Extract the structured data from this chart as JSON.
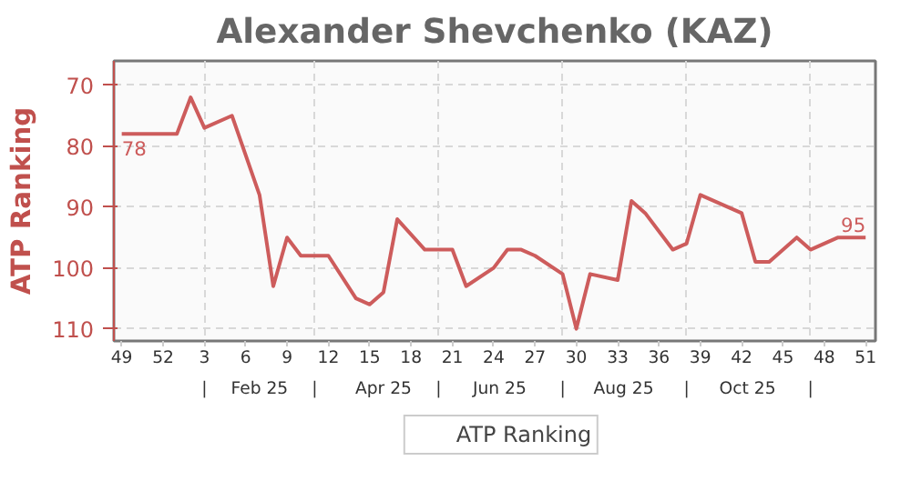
{
  "chart_data": {
    "type": "line",
    "title": "Alexander Shevchenko (KAZ)",
    "ylabel": "ATP Ranking",
    "x": [
      "2024-12-02",
      "2024-12-30",
      "2025-01-06",
      "2025-01-13",
      "2025-01-27",
      "2025-02-10",
      "2025-02-17",
      "2025-02-24",
      "2025-03-03",
      "2025-03-17",
      "2025-03-31",
      "2025-04-07",
      "2025-04-14",
      "2025-04-21",
      "2025-05-05",
      "2025-05-19",
      "2025-05-26",
      "2025-06-09",
      "2025-06-16",
      "2025-06-23",
      "2025-06-30",
      "2025-07-14",
      "2025-07-21",
      "2025-07-28",
      "2025-08-11",
      "2025-08-18",
      "2025-08-25",
      "2025-09-08",
      "2025-09-15",
      "2025-09-22",
      "2025-10-13",
      "2025-10-20",
      "2025-10-27",
      "2025-11-10",
      "2025-11-17",
      "2025-12-01",
      "2025-12-15"
    ],
    "series": [
      {
        "name": "ATP Ranking",
        "color": "#cd5c5c",
        "values": [
          78,
          78,
          72,
          77,
          75,
          88,
          103,
          95,
          98,
          98,
          105,
          106,
          104,
          92,
          97,
          97,
          103,
          100,
          97,
          97,
          98,
          101,
          110,
          101,
          102,
          89,
          91,
          97,
          96,
          88,
          91,
          99,
          99,
          95,
          97,
          95,
          95
        ],
        "value_labels": [
          "78",
          null,
          null,
          null,
          null,
          null,
          null,
          null,
          null,
          null,
          null,
          null,
          null,
          null,
          null,
          null,
          null,
          null,
          null,
          null,
          null,
          null,
          null,
          null,
          null,
          null,
          null,
          null,
          null,
          null,
          null,
          null,
          null,
          null,
          null,
          null,
          "95"
        ]
      }
    ],
    "xlim": [
      "2024-11-28",
      "2025-12-20"
    ],
    "xticks": [
      {
        "value": "2024-12-02",
        "label": "49"
      },
      {
        "value": "2024-12-23",
        "label": "52"
      },
      {
        "value": "2025-01-13",
        "label": "3"
      },
      {
        "value": "2025-02-03",
        "label": "6"
      },
      {
        "value": "2025-02-24",
        "label": "9"
      },
      {
        "value": "2025-03-17",
        "label": "12"
      },
      {
        "value": "2025-04-07",
        "label": "15"
      },
      {
        "value": "2025-04-28",
        "label": "18"
      },
      {
        "value": "2025-05-19",
        "label": "21"
      },
      {
        "value": "2025-06-09",
        "label": "24"
      },
      {
        "value": "2025-06-30",
        "label": "27"
      },
      {
        "value": "2025-07-21",
        "label": "30"
      },
      {
        "value": "2025-08-11",
        "label": "33"
      },
      {
        "value": "2025-09-01",
        "label": "36"
      },
      {
        "value": "2025-09-22",
        "label": "39"
      },
      {
        "value": "2025-10-13",
        "label": "42"
      },
      {
        "value": "2025-11-03",
        "label": "45"
      },
      {
        "value": "2025-11-24",
        "label": "48"
      },
      {
        "value": "2025-12-15",
        "label": "51"
      }
    ],
    "x2lim": [
      "2024-11-28",
      "2025-12-20"
    ],
    "x2ticks": [
      {
        "value": "2025-01-13",
        "label": "|"
      },
      {
        "value": "2025-02-10",
        "label": "Feb 25"
      },
      {
        "value": "2025-03-10",
        "label": "|"
      },
      {
        "value": "2025-04-14",
        "label": "Apr 25"
      },
      {
        "value": "2025-05-12",
        "label": "|"
      },
      {
        "value": "2025-06-12",
        "label": "Jun 25"
      },
      {
        "value": "2025-07-14",
        "label": "|"
      },
      {
        "value": "2025-08-14",
        "label": "Aug 25"
      },
      {
        "value": "2025-09-15",
        "label": "|"
      },
      {
        "value": "2025-10-16",
        "label": "Oct 25"
      },
      {
        "value": "2025-11-17",
        "label": "|"
      }
    ],
    "ylim": [
      112,
      66
    ],
    "yticks": [
      70,
      80,
      90,
      100,
      110
    ],
    "grid": true,
    "legend": "bottom",
    "marker": "none",
    "line_style": "solid"
  }
}
